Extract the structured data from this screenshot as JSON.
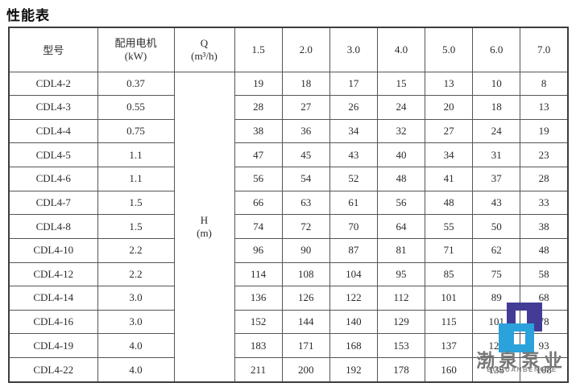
{
  "page_title": "性能表",
  "table": {
    "headers": {
      "model": "型号",
      "motor": "配用电机",
      "motor_unit": "(kW)",
      "q_label": "Q",
      "q_unit": "(m³/h)",
      "h_label": "H",
      "h_unit": "(m)",
      "flow_values": [
        "1.5",
        "2.0",
        "3.0",
        "4.0",
        "5.0",
        "6.0",
        "7.0"
      ]
    },
    "rows": [
      {
        "model": "CDL4-2",
        "power": "0.37",
        "heads": [
          "19",
          "18",
          "17",
          "15",
          "13",
          "10",
          "8"
        ]
      },
      {
        "model": "CDL4-3",
        "power": "0.55",
        "heads": [
          "28",
          "27",
          "26",
          "24",
          "20",
          "18",
          "13"
        ]
      },
      {
        "model": "CDL4-4",
        "power": "0.75",
        "heads": [
          "38",
          "36",
          "34",
          "32",
          "27",
          "24",
          "19"
        ]
      },
      {
        "model": "CDL4-5",
        "power": "1.1",
        "heads": [
          "47",
          "45",
          "43",
          "40",
          "34",
          "31",
          "23"
        ]
      },
      {
        "model": "CDL4-6",
        "power": "1.1",
        "heads": [
          "56",
          "54",
          "52",
          "48",
          "41",
          "37",
          "28"
        ]
      },
      {
        "model": "CDL4-7",
        "power": "1.5",
        "heads": [
          "66",
          "63",
          "61",
          "56",
          "48",
          "43",
          "33"
        ]
      },
      {
        "model": "CDL4-8",
        "power": "1.5",
        "heads": [
          "74",
          "72",
          "70",
          "64",
          "55",
          "50",
          "38"
        ]
      },
      {
        "model": "CDL4-10",
        "power": "2.2",
        "heads": [
          "96",
          "90",
          "87",
          "81",
          "71",
          "62",
          "48"
        ]
      },
      {
        "model": "CDL4-12",
        "power": "2.2",
        "heads": [
          "114",
          "108",
          "104",
          "95",
          "85",
          "75",
          "58"
        ]
      },
      {
        "model": "CDL4-14",
        "power": "3.0",
        "heads": [
          "136",
          "126",
          "122",
          "112",
          "101",
          "89",
          "68"
        ]
      },
      {
        "model": "CDL4-16",
        "power": "3.0",
        "heads": [
          "152",
          "144",
          "140",
          "129",
          "115",
          "101",
          "78"
        ]
      },
      {
        "model": "CDL4-19",
        "power": "4.0",
        "heads": [
          "183",
          "171",
          "168",
          "153",
          "137",
          "122",
          "93"
        ]
      },
      {
        "model": "CDL4-22",
        "power": "4.0",
        "heads": [
          "211",
          "200",
          "192",
          "178",
          "160",
          "138",
          "108"
        ]
      }
    ]
  },
  "watermark": {
    "logo_icon": "boquan-s-logo",
    "company_cn": "渤泉泵业",
    "company_en": "BOQUANBENGYE",
    "colors": {
      "indigo": "#423c97",
      "blue": "#2ba2dc",
      "text_gray": "#767676"
    }
  }
}
